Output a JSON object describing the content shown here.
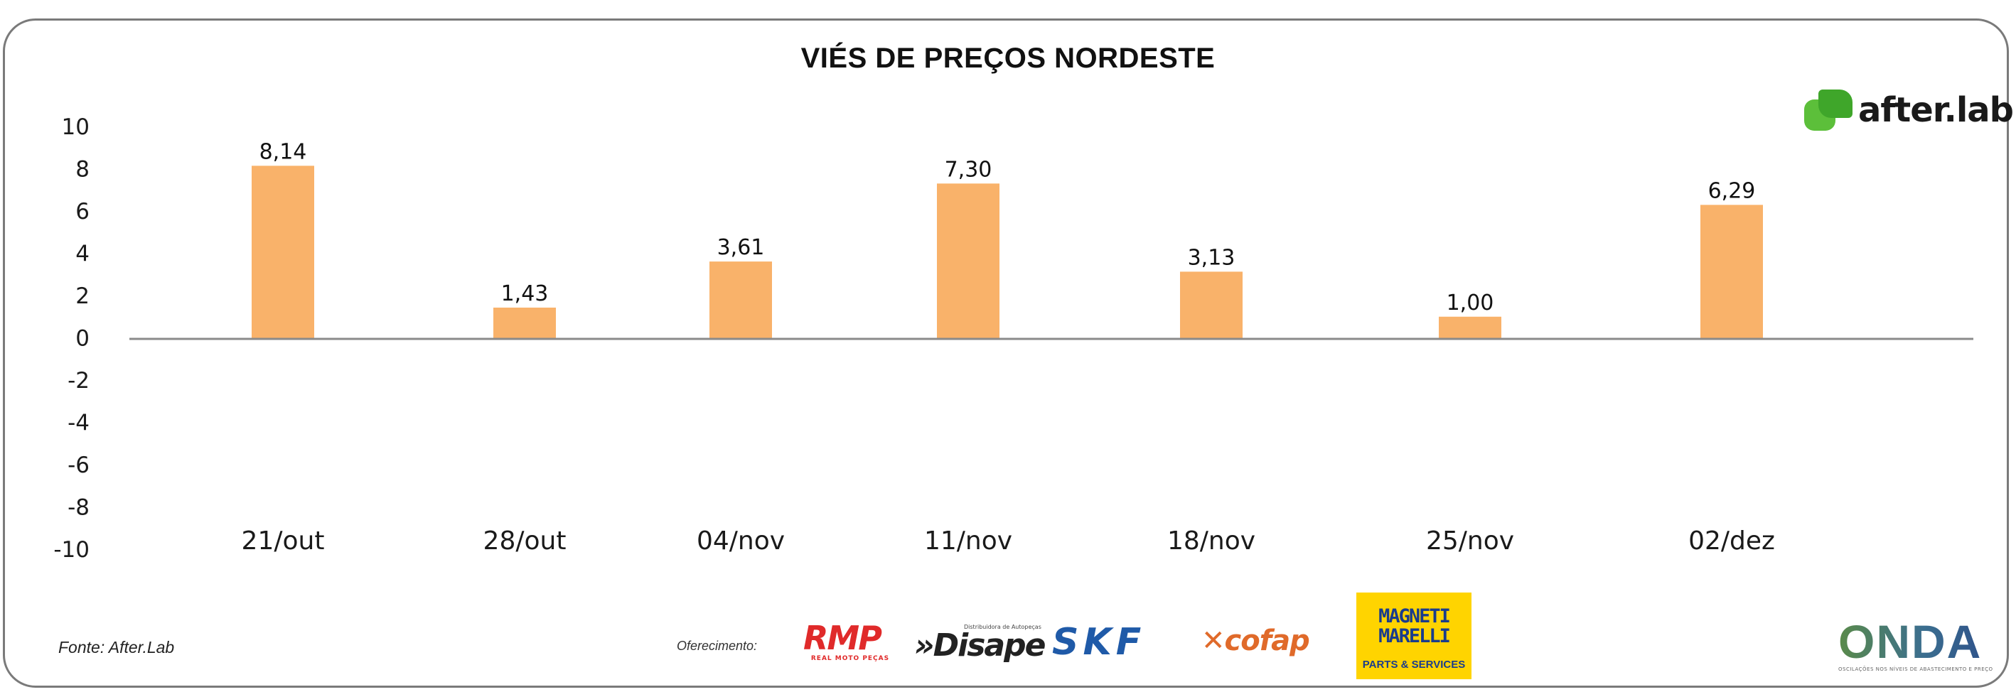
{
  "chart_data": {
    "type": "bar",
    "title": "VIÉS DE PREÇOS NORDESTE",
    "categories": [
      "21/out",
      "28/out",
      "04/nov",
      "11/nov",
      "18/nov",
      "25/nov",
      "02/dez"
    ],
    "values": [
      8.14,
      1.43,
      3.61,
      7.3,
      3.13,
      1.0,
      6.29
    ],
    "data_labels": [
      "8,14",
      "1,43",
      "3,61",
      "7,30",
      "3,13",
      "1,00",
      "6,29"
    ],
    "ylim": [
      -10,
      10
    ],
    "yticks": [
      10,
      8,
      6,
      4,
      2,
      0,
      -2,
      -4,
      -6,
      -8,
      -10
    ],
    "xlabel": "",
    "ylabel": "",
    "grid": false,
    "bar_color": "#F9B26A"
  },
  "source": "Fonte: After.Lab",
  "sponsors": {
    "label": "Oferecimento:",
    "rmp": "RMP",
    "rmp_sub": "REAL MOTO PEÇAS",
    "disape_small": "Distribuidora de Autopeças",
    "disape": "»Disape",
    "skf": "SKF",
    "cofop": "cofap",
    "magneti_top": "MAGNETI MARELLI",
    "magneti_bottom": "PARTS & SERVICES"
  },
  "brand": {
    "afterlab": "after.lab",
    "onda": "ONDA",
    "onda_sub": "OSCILAÇÕES NOS NÍVEIS DE ABASTECIMENTO E PREÇO"
  },
  "colors": {
    "accent": "#5cbf3a",
    "bar": "#F9B26A",
    "frame": "#7a7a7a"
  }
}
